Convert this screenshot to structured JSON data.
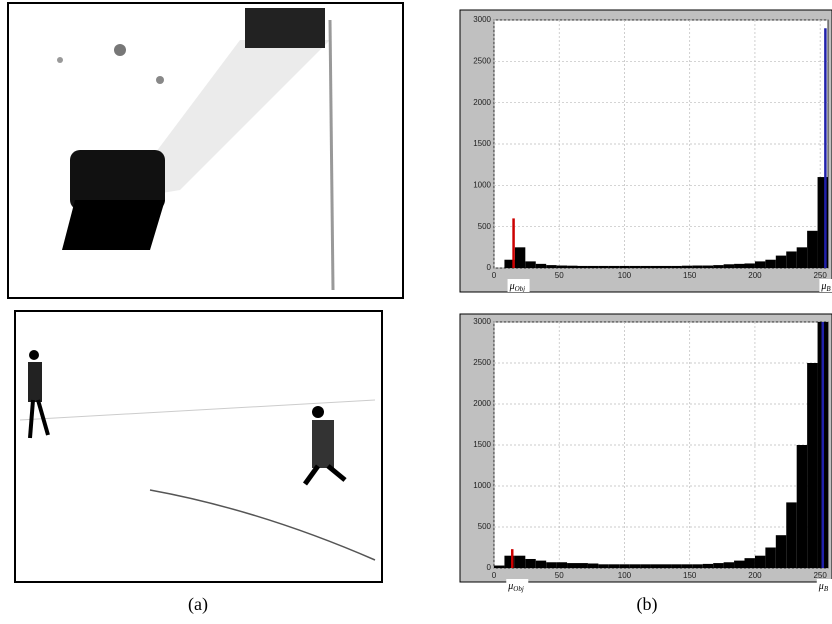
{
  "figure": {
    "captions": [
      "(a)",
      "(b)"
    ]
  },
  "chart_data": [
    {
      "type": "histogram",
      "bins": [
        0,
        8,
        16,
        24,
        32,
        40,
        48,
        56,
        64,
        72,
        80,
        88,
        96,
        104,
        112,
        120,
        128,
        136,
        144,
        152,
        160,
        168,
        176,
        184,
        192,
        200,
        208,
        216,
        224,
        232,
        240,
        248,
        256
      ],
      "values": [
        0,
        100,
        250,
        80,
        50,
        35,
        30,
        28,
        25,
        25,
        25,
        25,
        25,
        25,
        25,
        25,
        25,
        25,
        28,
        30,
        30,
        35,
        45,
        50,
        55,
        80,
        100,
        150,
        200,
        250,
        450,
        1100
      ],
      "color": "#000000",
      "background": "#c0c0c0",
      "xlim": [
        0,
        256
      ],
      "ylim": [
        0,
        3000
      ],
      "xticks": [
        0,
        50,
        100,
        150,
        200,
        250
      ],
      "yticks": [
        0,
        500,
        1000,
        1500,
        2000,
        2500,
        3000
      ],
      "grid": true,
      "markers": [
        {
          "label": {
            "symbol": "μ",
            "subscript": "Obj"
          },
          "x": 15,
          "y": 600,
          "color": "#cc0000"
        },
        {
          "label": {
            "symbol": "μ",
            "subscript": "B"
          },
          "x": 254,
          "y": 2900,
          "color": "#2020aa"
        }
      ]
    },
    {
      "type": "histogram",
      "bins": [
        0,
        8,
        16,
        24,
        32,
        40,
        48,
        56,
        64,
        72,
        80,
        88,
        96,
        104,
        112,
        120,
        128,
        136,
        144,
        152,
        160,
        168,
        176,
        184,
        192,
        200,
        208,
        216,
        224,
        232,
        240,
        248,
        256
      ],
      "values": [
        30,
        150,
        150,
        110,
        90,
        70,
        70,
        60,
        60,
        55,
        45,
        45,
        45,
        45,
        45,
        45,
        45,
        45,
        45,
        45,
        50,
        60,
        70,
        90,
        120,
        150,
        250,
        400,
        800,
        1500,
        2500,
        3000
      ],
      "color": "#000000",
      "background": "#c0c0c0",
      "xlim": [
        0,
        256
      ],
      "ylim": [
        0,
        3000
      ],
      "xticks": [
        0,
        50,
        100,
        150,
        200,
        250
      ],
      "yticks": [
        0,
        500,
        1000,
        1500,
        2000,
        2500,
        3000
      ],
      "grid": true,
      "markers": [
        {
          "label": {
            "symbol": "μ",
            "subscript": "Obj"
          },
          "x": 14,
          "y": 230,
          "color": "#cc0000"
        },
        {
          "label": {
            "symbol": "μ",
            "subscript": "B"
          },
          "x": 252,
          "y": 3000,
          "color": "#2020aa"
        }
      ]
    }
  ]
}
